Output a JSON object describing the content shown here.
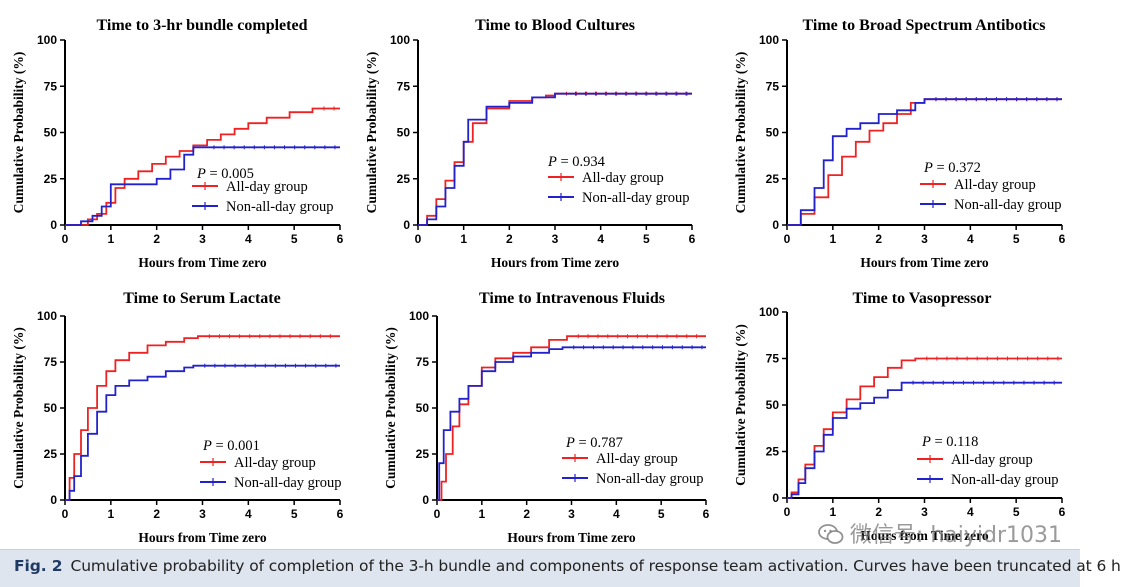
{
  "figure": {
    "caption_label": "Fig. 2",
    "caption_text": "Cumulative probability of completion of the 3-h bundle and components of response team activation. Curves have been truncated at 6 h",
    "watermark_text": "微信号: haiyidr1031",
    "watermark_icon": "chat-bubbles-icon"
  },
  "colors": {
    "all_day": "#ee2222",
    "non_all_day": "#2222cc",
    "axis": "#000000"
  },
  "chart_data": [
    {
      "type": "line",
      "title": "Time to 3-hr bundle completed",
      "xlabel": "Hours from Time zero",
      "ylabel": "Cumulative Probability (%)",
      "xlim": [
        0,
        6
      ],
      "ylim": [
        0,
        100
      ],
      "xticks": [
        "0",
        "1",
        "2",
        "3",
        "4",
        "5",
        "6"
      ],
      "yticks": [
        "0",
        "25",
        "50",
        "75",
        "100"
      ],
      "annotation": {
        "italic": "P",
        "rest": " = 0.005"
      },
      "legend": [
        "All-day group",
        "Non-all-day group"
      ],
      "legend_position": "middle-right",
      "series": [
        {
          "name": "All-day group",
          "color": "#ee2222",
          "x": [
            0,
            0.3,
            0.5,
            0.7,
            0.9,
            1.1,
            1.3,
            1.6,
            1.9,
            2.2,
            2.5,
            2.8,
            3.1,
            3.4,
            3.7,
            4.0,
            4.4,
            4.9,
            5.4,
            6.0
          ],
          "y": [
            0,
            0,
            3,
            6,
            12,
            20,
            25,
            29,
            33,
            37,
            40,
            43,
            46,
            49,
            52,
            55,
            58,
            61,
            63,
            63
          ]
        },
        {
          "name": "Non-all-day group",
          "color": "#2222cc",
          "x": [
            0,
            0.35,
            0.6,
            0.8,
            1.0,
            1.3,
            1.6,
            2.0,
            2.3,
            2.6,
            2.8,
            3.0,
            6.0
          ],
          "y": [
            0,
            2,
            5,
            10,
            22,
            22,
            22,
            25,
            30,
            38,
            42,
            42,
            42
          ]
        }
      ]
    },
    {
      "type": "line",
      "title": "Time to Blood Cultures",
      "xlabel": "Hours from Time zero",
      "ylabel": "Cumulative Probability (%)",
      "xlim": [
        0,
        6
      ],
      "ylim": [
        0,
        100
      ],
      "xticks": [
        "0",
        "1",
        "2",
        "3",
        "4",
        "5",
        "6"
      ],
      "yticks": [
        "0",
        "25",
        "50",
        "75",
        "100"
      ],
      "annotation": {
        "italic": "P",
        "rest": " = 0.934"
      },
      "legend": [
        "All-day group",
        "Non-all-day group"
      ],
      "legend_position": "middle-right",
      "series": [
        {
          "name": "All-day group",
          "color": "#ee2222",
          "x": [
            0,
            0.2,
            0.4,
            0.6,
            0.8,
            1.0,
            1.2,
            1.5,
            2.0,
            2.5,
            2.8,
            3.0,
            6.0
          ],
          "y": [
            0,
            5,
            14,
            24,
            34,
            45,
            55,
            63,
            67,
            69,
            70,
            71,
            71
          ]
        },
        {
          "name": "Non-all-day group",
          "color": "#2222cc",
          "x": [
            0,
            0.2,
            0.4,
            0.6,
            0.8,
            1.0,
            1.1,
            1.5,
            2.0,
            2.5,
            3.0,
            3.2,
            6.0
          ],
          "y": [
            0,
            3,
            10,
            20,
            32,
            45,
            57,
            64,
            66,
            69,
            71,
            71,
            71
          ]
        }
      ]
    },
    {
      "type": "line",
      "title": "Time to Broad Spectrum Antibotics",
      "xlabel": "Hours from Time zero",
      "ylabel": "Cumulative Probability (%)",
      "xlim": [
        0,
        6
      ],
      "ylim": [
        0,
        100
      ],
      "xticks": [
        "0",
        "1",
        "2",
        "3",
        "4",
        "5",
        "6"
      ],
      "yticks": [
        "0",
        "25",
        "50",
        "75",
        "100"
      ],
      "annotation": {
        "italic": "P",
        "rest": " = 0.372"
      },
      "legend": [
        "All-day group",
        "Non-all-day group"
      ],
      "legend_position": "middle-right",
      "series": [
        {
          "name": "All-day group",
          "color": "#ee2222",
          "x": [
            0,
            0.3,
            0.6,
            0.9,
            1.2,
            1.5,
            1.8,
            2.1,
            2.4,
            2.7,
            3.0,
            6.0
          ],
          "y": [
            0,
            6,
            15,
            27,
            37,
            45,
            51,
            55,
            60,
            66,
            68,
            68
          ]
        },
        {
          "name": "Non-all-day group",
          "color": "#2222cc",
          "x": [
            0,
            0.3,
            0.6,
            0.8,
            1.0,
            1.3,
            1.6,
            2.0,
            2.4,
            2.8,
            3.0,
            6.0
          ],
          "y": [
            0,
            8,
            20,
            35,
            48,
            52,
            55,
            60,
            62,
            66,
            68,
            68
          ]
        }
      ]
    },
    {
      "type": "line",
      "title": "Time to Serum Lactate",
      "xlabel": "Hours from Time zero",
      "ylabel": "Cumulative Probability (%)",
      "xlim": [
        0,
        6
      ],
      "ylim": [
        0,
        100
      ],
      "xticks": [
        "0",
        "1",
        "2",
        "3",
        "4",
        "5",
        "6"
      ],
      "yticks": [
        "0",
        "25",
        "50",
        "75",
        "100"
      ],
      "annotation": {
        "italic": "P",
        "rest": " = 0.001"
      },
      "legend": [
        "All-day group",
        "Non-all-day group"
      ],
      "legend_position": "lower-right",
      "series": [
        {
          "name": "All-day group",
          "color": "#ee2222",
          "x": [
            0,
            0.1,
            0.2,
            0.35,
            0.5,
            0.7,
            0.9,
            1.1,
            1.4,
            1.8,
            2.2,
            2.6,
            2.9,
            6.0
          ],
          "y": [
            0,
            12,
            25,
            38,
            50,
            62,
            70,
            76,
            80,
            84,
            86,
            88,
            89,
            89
          ]
        },
        {
          "name": "Non-all-day group",
          "color": "#2222cc",
          "x": [
            0,
            0.1,
            0.2,
            0.35,
            0.5,
            0.7,
            0.9,
            1.1,
            1.4,
            1.8,
            2.2,
            2.6,
            2.8,
            6.0
          ],
          "y": [
            0,
            5,
            13,
            24,
            36,
            48,
            57,
            62,
            65,
            67,
            70,
            72,
            73,
            73
          ]
        }
      ]
    },
    {
      "type": "line",
      "title": "Time to Intravenous Fluids",
      "xlabel": "Hours from Time zero",
      "ylabel": "Cumulative Probability (%)",
      "xlim": [
        0,
        6
      ],
      "ylim": [
        0,
        100
      ],
      "xticks": [
        "0",
        "1",
        "2",
        "3",
        "4",
        "5",
        "6"
      ],
      "yticks": [
        "0",
        "25",
        "50",
        "75",
        "100"
      ],
      "annotation": {
        "italic": "P",
        "rest": " = 0.787"
      },
      "legend": [
        "All-day group",
        "Non-all-day group"
      ],
      "legend_position": "lower-right",
      "series": [
        {
          "name": "All-day group",
          "color": "#ee2222",
          "x": [
            0,
            0.1,
            0.2,
            0.35,
            0.5,
            0.7,
            1.0,
            1.3,
            1.7,
            2.1,
            2.5,
            2.9,
            6.0
          ],
          "y": [
            0,
            10,
            25,
            40,
            52,
            62,
            72,
            77,
            80,
            83,
            87,
            89,
            89
          ]
        },
        {
          "name": "Non-all-day group",
          "color": "#2222cc",
          "x": [
            0,
            0.05,
            0.15,
            0.3,
            0.5,
            0.7,
            1.0,
            1.3,
            1.7,
            2.1,
            2.5,
            2.8,
            6.0
          ],
          "y": [
            0,
            20,
            38,
            48,
            55,
            62,
            70,
            75,
            78,
            80,
            82,
            83,
            83
          ]
        }
      ]
    },
    {
      "type": "line",
      "title": "Time to Vasopressor",
      "xlabel": "Hours from Time zero",
      "ylabel": "Cumulative Probability (%)",
      "xlim": [
        0,
        6
      ],
      "ylim": [
        0,
        100
      ],
      "xticks": [
        "0",
        "1",
        "2",
        "3",
        "4",
        "5",
        "6"
      ],
      "yticks": [
        "0",
        "25",
        "50",
        "75",
        "100"
      ],
      "annotation": {
        "italic": "P",
        "rest": " = 0.118"
      },
      "legend": [
        "All-day group",
        "Non-all-day group"
      ],
      "legend_position": "lower-right",
      "series": [
        {
          "name": "All-day group",
          "color": "#ee2222",
          "x": [
            0,
            0.1,
            0.25,
            0.4,
            0.6,
            0.8,
            1.0,
            1.3,
            1.6,
            1.9,
            2.2,
            2.5,
            2.8,
            6.0
          ],
          "y": [
            0,
            3,
            10,
            18,
            28,
            37,
            46,
            53,
            60,
            65,
            70,
            74,
            75,
            75
          ]
        },
        {
          "name": "Non-all-day group",
          "color": "#2222cc",
          "x": [
            0,
            0.1,
            0.25,
            0.4,
            0.6,
            0.8,
            1.0,
            1.3,
            1.6,
            1.9,
            2.2,
            2.5,
            6.0
          ],
          "y": [
            0,
            2,
            8,
            16,
            25,
            34,
            43,
            48,
            51,
            54,
            58,
            62,
            62
          ]
        }
      ]
    }
  ]
}
